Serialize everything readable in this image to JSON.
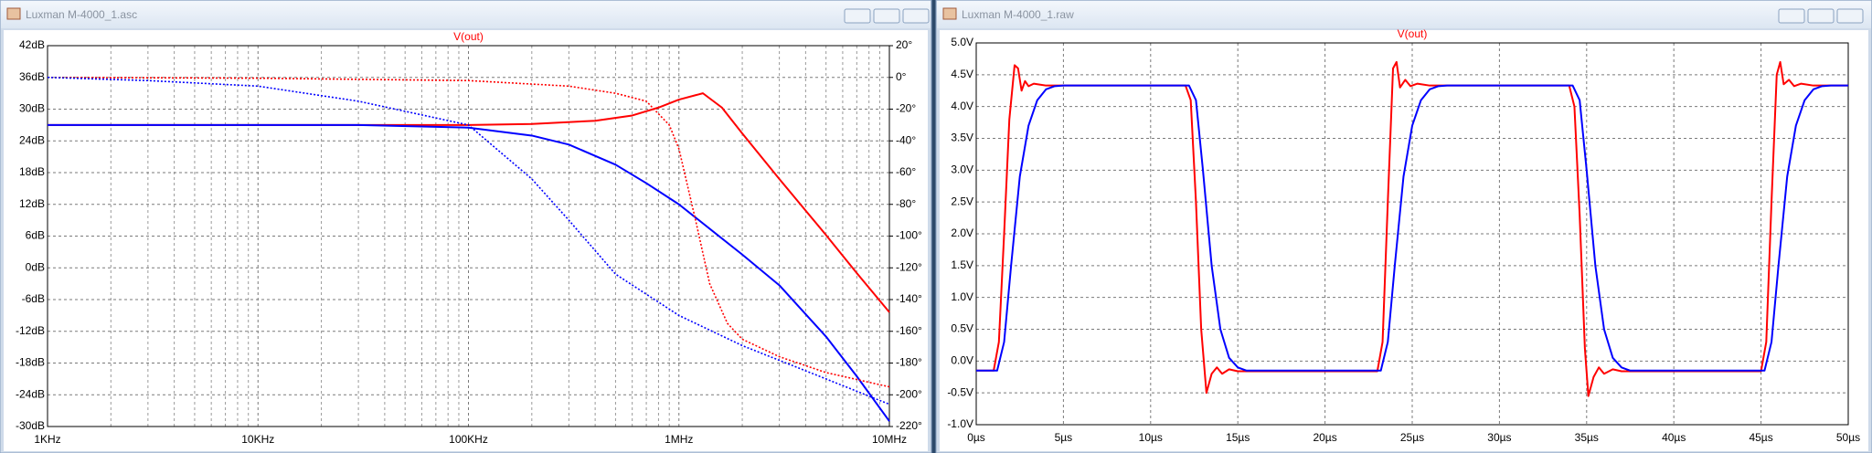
{
  "windows": [
    {
      "title": "Luxman M-4000_1.asc"
    },
    {
      "title": "Luxman M-4000_1.raw"
    }
  ],
  "chart_data": [
    {
      "type": "line",
      "title": "V(out)",
      "title_color": "#ff0000",
      "xscale": "log",
      "grid": true,
      "minor_grid": true,
      "xlim": [
        1000,
        10000000
      ],
      "xticks": [
        {
          "value": 1000,
          "label": "1KHz"
        },
        {
          "value": 10000,
          "label": "10KHz"
        },
        {
          "value": 100000,
          "label": "100KHz"
        },
        {
          "value": 1000000,
          "label": "1MHz"
        },
        {
          "value": 10000000,
          "label": "10MHz"
        }
      ],
      "ylim": [
        -30,
        42
      ],
      "yticks": [
        {
          "value": 42,
          "label": "42dB"
        },
        {
          "value": 36,
          "label": "36dB"
        },
        {
          "value": 30,
          "label": "30dB"
        },
        {
          "value": 24,
          "label": "24dB"
        },
        {
          "value": 18,
          "label": "18dB"
        },
        {
          "value": 12,
          "label": "12dB"
        },
        {
          "value": 6,
          "label": "6dB"
        },
        {
          "value": 0,
          "label": "0dB"
        },
        {
          "value": -6,
          "label": "-6dB"
        },
        {
          "value": -12,
          "label": "-12dB"
        },
        {
          "value": -18,
          "label": "-18dB"
        },
        {
          "value": -24,
          "label": "-24dB"
        },
        {
          "value": -30,
          "label": "-30dB"
        }
      ],
      "y2lim": [
        -220,
        20
      ],
      "y2ticks": [
        {
          "value": 20,
          "label": "20°"
        },
        {
          "value": 0,
          "label": "0°"
        },
        {
          "value": -20,
          "label": "-20°"
        },
        {
          "value": -40,
          "label": "-40°"
        },
        {
          "value": -60,
          "label": "-60°"
        },
        {
          "value": -80,
          "label": "-80°"
        },
        {
          "value": -100,
          "label": "-100°"
        },
        {
          "value": -120,
          "label": "-120°"
        },
        {
          "value": -140,
          "label": "-140°"
        },
        {
          "value": -160,
          "label": "-160°"
        },
        {
          "value": -180,
          "label": "-180°"
        },
        {
          "value": -200,
          "label": "-200°"
        },
        {
          "value": -220,
          "label": "-220°"
        }
      ],
      "series": [
        {
          "color": "#ff0000",
          "style": "solid",
          "x": [
            1000,
            10000,
            100000,
            200000,
            400000,
            600000,
            800000,
            1000000,
            1300000,
            1600000,
            2000000,
            3000000,
            5000000,
            7000000,
            10000000
          ],
          "values": [
            27,
            27,
            27,
            27.2,
            27.8,
            28.8,
            30.3,
            31.8,
            33,
            30.3,
            25.4,
            16.8,
            6.2,
            -1,
            -8.4
          ]
        },
        {
          "color": "#0000ff",
          "style": "solid",
          "x": [
            1000,
            30000,
            100000,
            200000,
            300000,
            500000,
            700000,
            1000000,
            2000000,
            3000000,
            5000000,
            7000000,
            10000000
          ],
          "values": [
            27,
            27,
            26.5,
            25,
            23.3,
            19.5,
            16,
            12,
            2.5,
            -3.3,
            -13,
            -20.5,
            -29
          ]
        },
        {
          "color": "#ff0000",
          "style": "dotted",
          "axis": "y2",
          "x": [
            1000,
            10000,
            100000,
            300000,
            500000,
            700000,
            900000,
            1000000,
            1200000,
            1400000,
            1700000,
            2000000,
            3000000,
            5000000,
            10000000
          ],
          "values": [
            0,
            -0.5,
            -2,
            -5.5,
            -10,
            -15,
            -30,
            -45,
            -90,
            -130,
            -155,
            -165,
            -176,
            -186,
            -195
          ]
        },
        {
          "color": "#0000ff",
          "style": "dotted",
          "axis": "y2",
          "x": [
            1000,
            3000,
            10000,
            30000,
            100000,
            200000,
            300000,
            500000,
            1000000,
            2000000,
            5000000,
            10000000
          ],
          "values": [
            0,
            -2,
            -5.5,
            -15,
            -30,
            -64,
            -90,
            -124,
            -150,
            -169,
            -190,
            -206
          ]
        }
      ]
    },
    {
      "type": "line",
      "title": "V(out)",
      "title_color": "#ff0000",
      "grid": true,
      "xlim": [
        0,
        50
      ],
      "xticks": [
        {
          "value": 0,
          "label": "0µs"
        },
        {
          "value": 5,
          "label": "5µs"
        },
        {
          "value": 10,
          "label": "10µs"
        },
        {
          "value": 15,
          "label": "15µs"
        },
        {
          "value": 20,
          "label": "20µs"
        },
        {
          "value": 25,
          "label": "25µs"
        },
        {
          "value": 30,
          "label": "30µs"
        },
        {
          "value": 35,
          "label": "35µs"
        },
        {
          "value": 40,
          "label": "40µs"
        },
        {
          "value": 45,
          "label": "45µs"
        },
        {
          "value": 50,
          "label": "50µs"
        }
      ],
      "ylim": [
        -1,
        5
      ],
      "yticks": [
        {
          "value": 5,
          "label": "5.0V"
        },
        {
          "value": 4.5,
          "label": "4.5V"
        },
        {
          "value": 4,
          "label": "4.0V"
        },
        {
          "value": 3.5,
          "label": "3.5V"
        },
        {
          "value": 3,
          "label": "3.0V"
        },
        {
          "value": 2.5,
          "label": "2.5V"
        },
        {
          "value": 2,
          "label": "2.0V"
        },
        {
          "value": 1.5,
          "label": "1.5V"
        },
        {
          "value": 1,
          "label": "1.0V"
        },
        {
          "value": 0.5,
          "label": "0.5V"
        },
        {
          "value": 0,
          "label": "0.0V"
        },
        {
          "value": -0.5,
          "label": "-0.5V"
        },
        {
          "value": -1,
          "label": "-1.0V"
        }
      ],
      "series": [
        {
          "color": "#ff0000",
          "style": "solid",
          "x": [
            0,
            1,
            1.3,
            1.6,
            1.9,
            2.2,
            2.4,
            2.6,
            2.8,
            3,
            3.3,
            4,
            12,
            12.3,
            12.6,
            12.9,
            13.2,
            13.5,
            13.8,
            14.1,
            14.5,
            15,
            23,
            23.3,
            23.6,
            23.9,
            24.1,
            24.3,
            24.6,
            24.9,
            25.3,
            26,
            34,
            34.3,
            34.6,
            34.9,
            35.1,
            35.4,
            35.7,
            36,
            36.5,
            37,
            45,
            45.3,
            45.6,
            45.9,
            46.1,
            46.3,
            46.6,
            46.9,
            47.3,
            48,
            50
          ],
          "values": [
            -0.15,
            -0.15,
            0.3,
            2,
            3.8,
            4.65,
            4.6,
            4.25,
            4.4,
            4.32,
            4.36,
            4.33,
            4.33,
            4.1,
            2.5,
            0.5,
            -0.5,
            -0.2,
            -0.1,
            -0.2,
            -0.13,
            -0.16,
            -0.16,
            0.3,
            2.5,
            4.6,
            4.7,
            4.3,
            4.42,
            4.32,
            4.36,
            4.33,
            4.33,
            4,
            2.3,
            0.2,
            -0.55,
            -0.25,
            -0.1,
            -0.2,
            -0.13,
            -0.16,
            -0.16,
            0.3,
            2.5,
            4.5,
            4.7,
            4.35,
            4.42,
            4.32,
            4.36,
            4.33,
            4.33
          ]
        },
        {
          "color": "#0000ff",
          "style": "solid",
          "x": [
            0,
            1.2,
            1.6,
            2,
            2.5,
            3,
            3.5,
            4,
            4.5,
            5,
            12.2,
            12.6,
            13,
            13.5,
            14,
            14.5,
            15,
            15.5,
            23.2,
            23.6,
            24,
            24.5,
            25,
            25.5,
            26,
            26.5,
            27,
            34.2,
            34.6,
            35,
            35.5,
            36,
            36.5,
            37,
            37.5,
            45.2,
            45.6,
            46,
            46.5,
            47,
            47.5,
            48,
            48.5,
            49,
            50
          ],
          "values": [
            -0.15,
            -0.15,
            0.3,
            1.5,
            2.9,
            3.7,
            4.1,
            4.27,
            4.32,
            4.33,
            4.33,
            4.1,
            3,
            1.5,
            0.5,
            0.05,
            -0.1,
            -0.15,
            -0.15,
            0.3,
            1.5,
            2.9,
            3.7,
            4.1,
            4.27,
            4.32,
            4.33,
            4.33,
            4.1,
            3,
            1.5,
            0.5,
            0.05,
            -0.1,
            -0.15,
            -0.15,
            0.3,
            1.5,
            2.9,
            3.7,
            4.1,
            4.27,
            4.32,
            4.33,
            4.33
          ]
        }
      ]
    }
  ]
}
